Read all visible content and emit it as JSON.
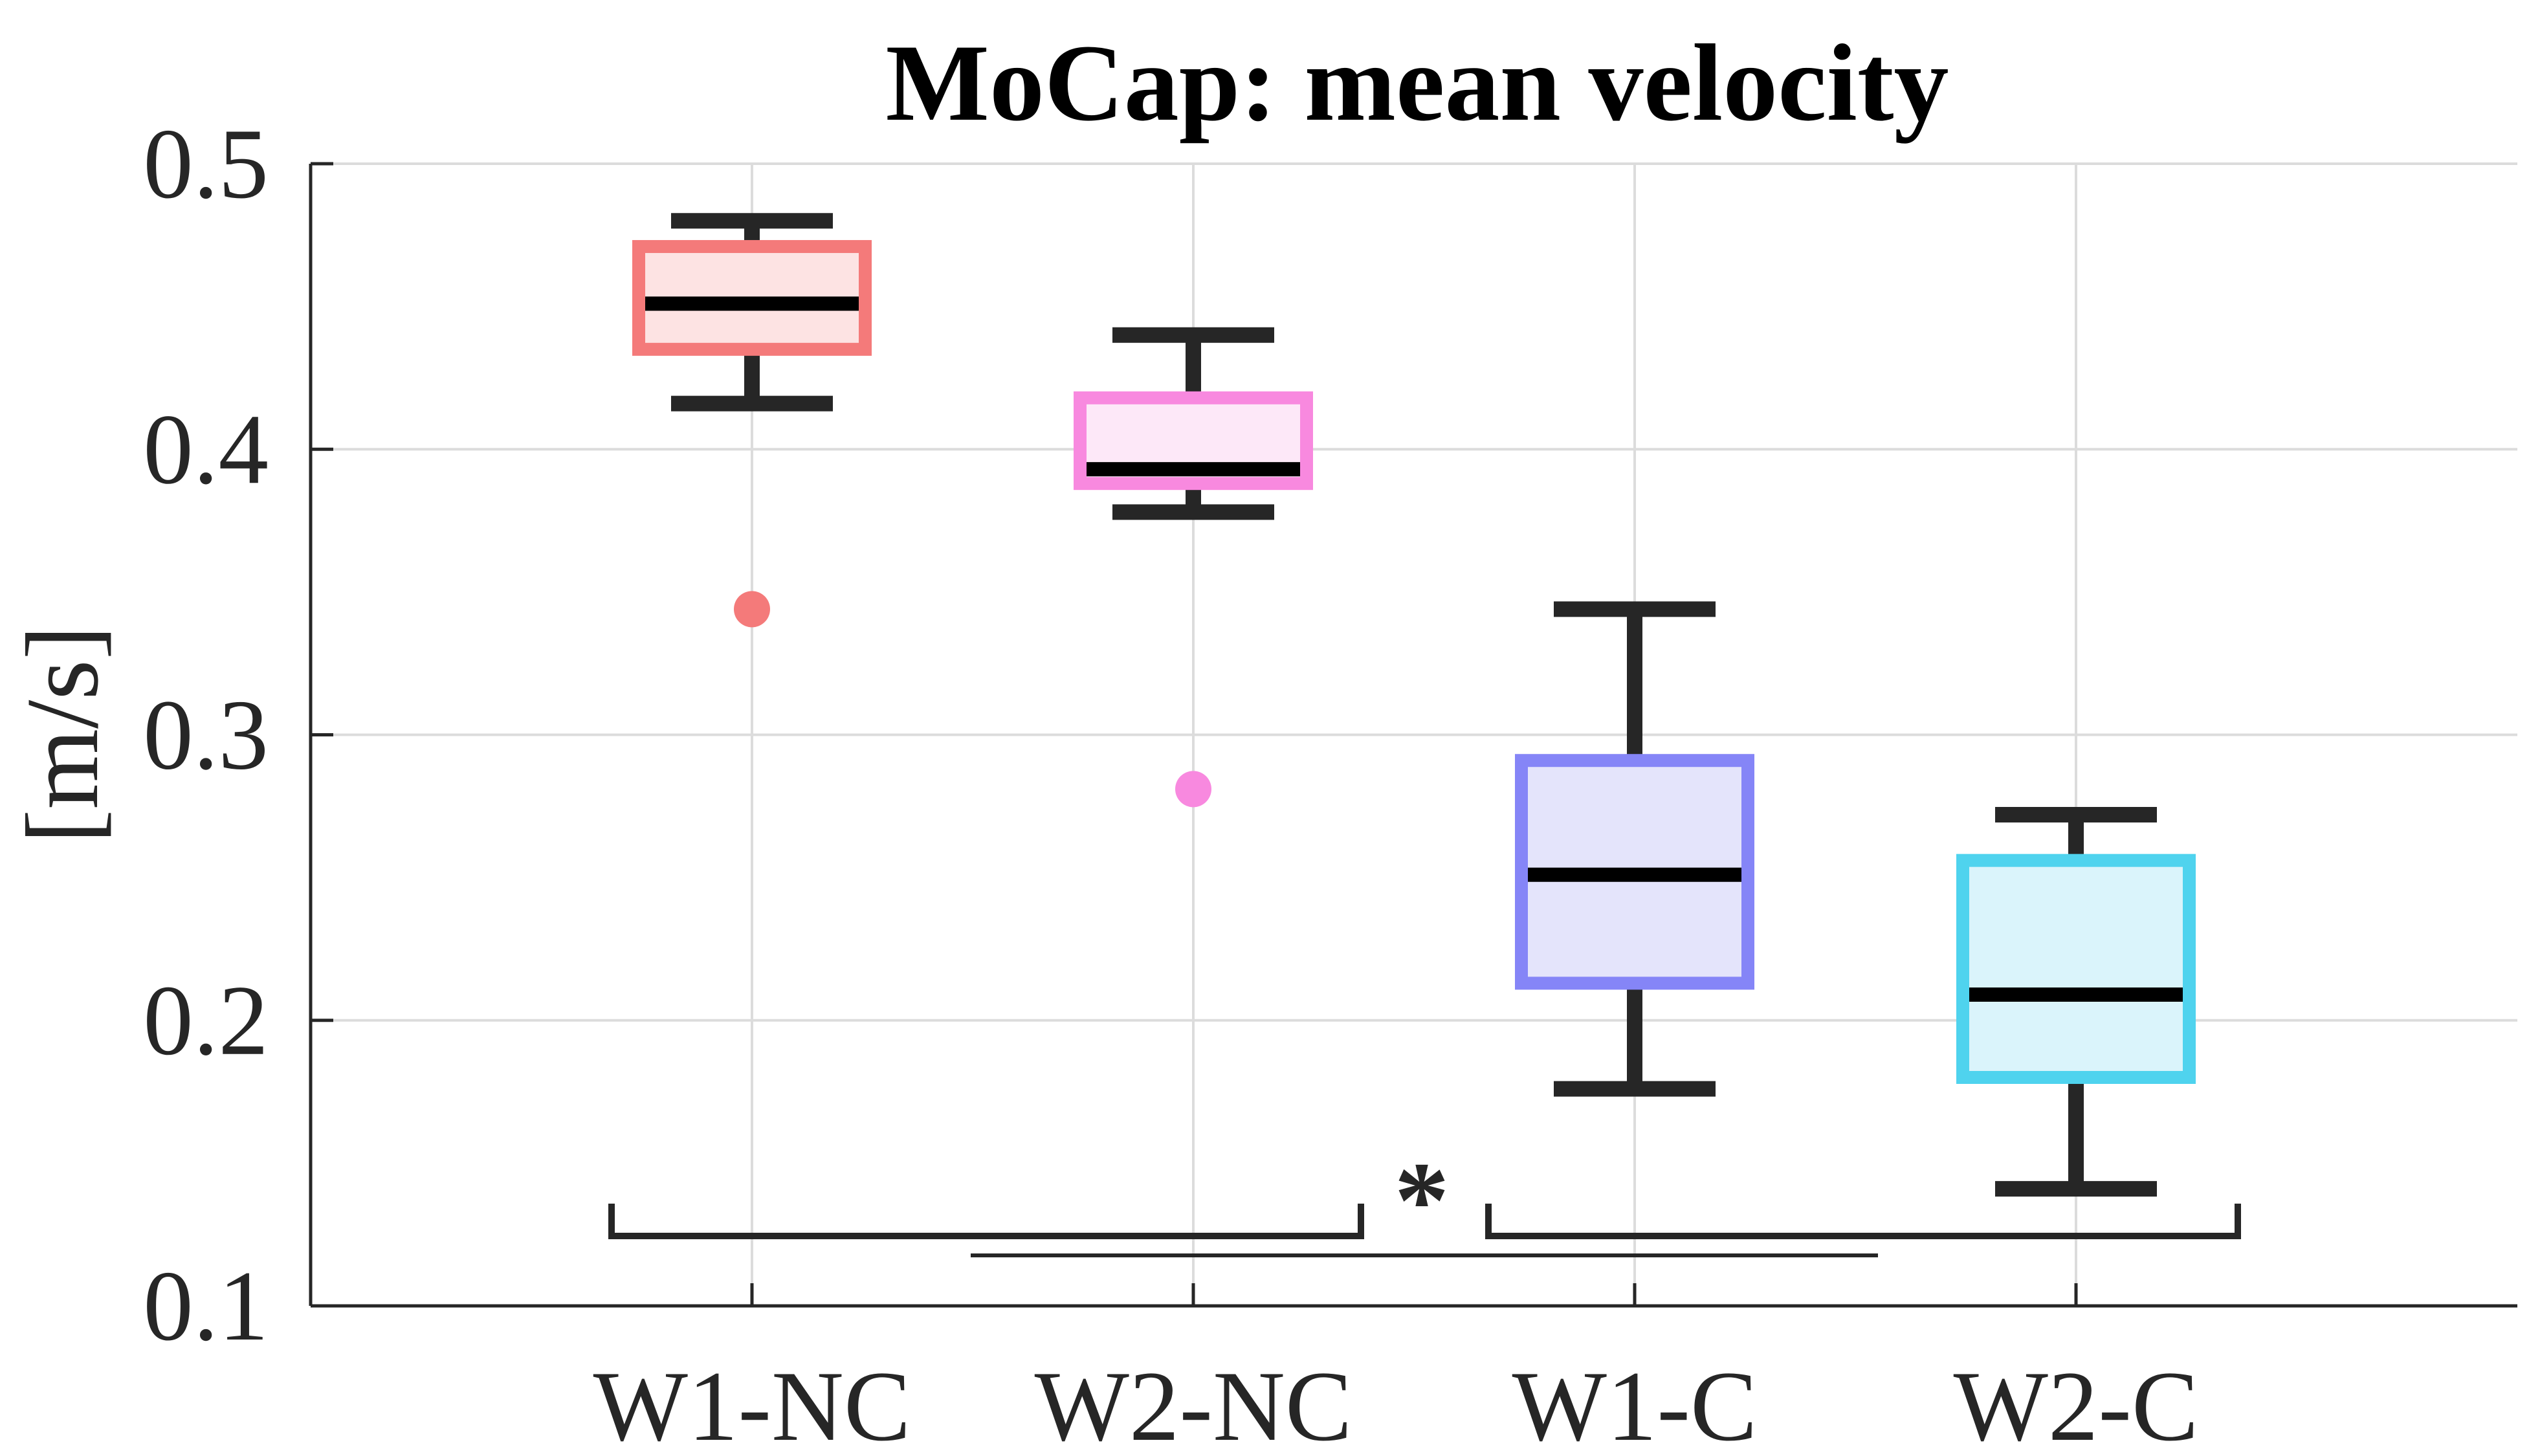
{
  "chart_data": {
    "type": "box",
    "title": "MoCap: mean velocity",
    "xlabel": "",
    "ylabel": "[m/s]",
    "ylim": [
      0.1,
      0.5
    ],
    "yticks": [
      0.1,
      0.2,
      0.3,
      0.4,
      0.5
    ],
    "ytick_labels": [
      "0.1",
      "0.2",
      "0.3",
      "0.4",
      "0.5"
    ],
    "grid": true,
    "categories": [
      "W1-NC",
      "W2-NC",
      "W1-C",
      "W2-C"
    ],
    "boxes": [
      {
        "name": "W1-NC",
        "color": "#f47a7a",
        "fill": "#fde3e3",
        "whisker_low": 0.416,
        "q1": 0.435,
        "median": 0.451,
        "q3": 0.471,
        "whisker_high": 0.48,
        "outliers": [
          0.344
        ]
      },
      {
        "name": "W2-NC",
        "color": "#f889df",
        "fill": "#fde8f8",
        "whisker_low": 0.378,
        "q1": 0.388,
        "median": 0.393,
        "q3": 0.418,
        "whisker_high": 0.44,
        "outliers": [
          0.281
        ]
      },
      {
        "name": "W1-C",
        "color": "#8585f7",
        "fill": "#e4e4fb",
        "whisker_low": 0.176,
        "q1": 0.213,
        "median": 0.251,
        "q3": 0.291,
        "whisker_high": 0.344,
        "outliers": []
      },
      {
        "name": "W2-C",
        "color": "#4fd3ee",
        "fill": "#daf4fb",
        "whisker_low": 0.141,
        "q1": 0.18,
        "median": 0.209,
        "q3": 0.256,
        "whisker_high": 0.272,
        "outliers": []
      }
    ],
    "significance": {
      "label": "*",
      "left_group": [
        "W1-NC",
        "W2-NC"
      ],
      "right_group": [
        "W1-C",
        "W2-C"
      ]
    }
  }
}
